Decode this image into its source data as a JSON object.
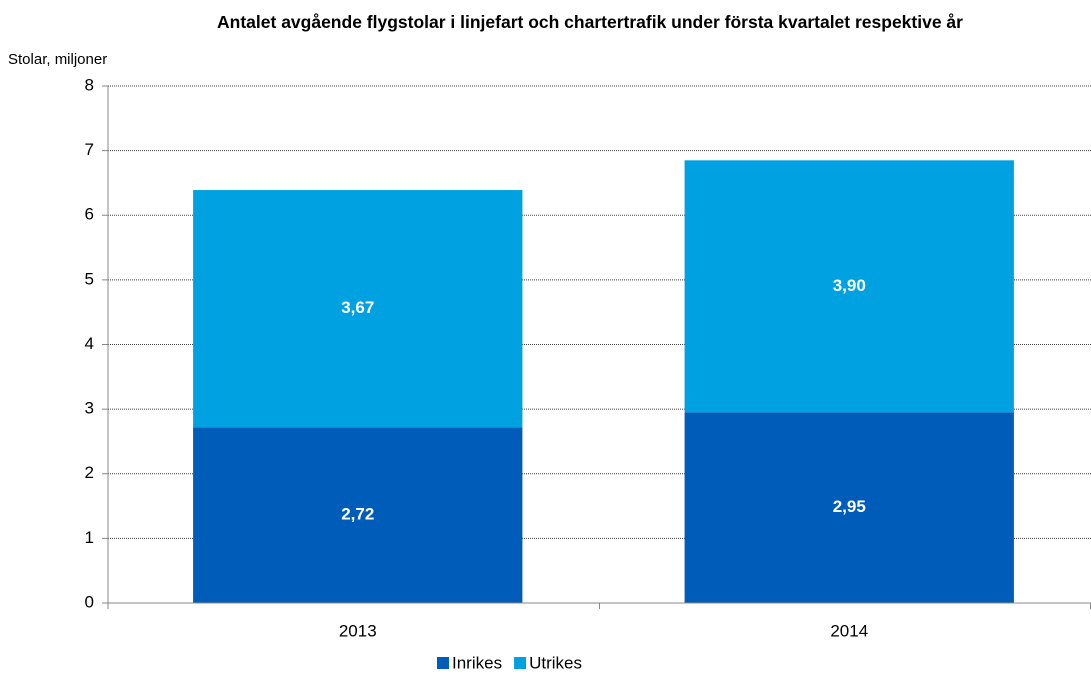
{
  "chart_data": {
    "type": "stacked_bar",
    "title": "Antalet avgående flygstolar i linjefart och chartertrafik under första kvartalet respektive år",
    "y_label": "Stolar, miljoner",
    "categories": [
      "2013",
      "2014"
    ],
    "series": [
      {
        "name": "Inrikes",
        "color": "#005cb9",
        "values": [
          2.72,
          2.95
        ],
        "value_labels": [
          "2,72",
          "2,95"
        ]
      },
      {
        "name": "Utrikes",
        "color": "#00a1e0",
        "values": [
          3.67,
          3.9
        ],
        "value_labels": [
          "3,67",
          "3,90"
        ]
      }
    ],
    "ylim": [
      0,
      8
    ],
    "yticks": [
      0,
      1,
      2,
      3,
      4,
      5,
      6,
      7,
      8
    ],
    "grid": true,
    "legend": "bottom"
  }
}
